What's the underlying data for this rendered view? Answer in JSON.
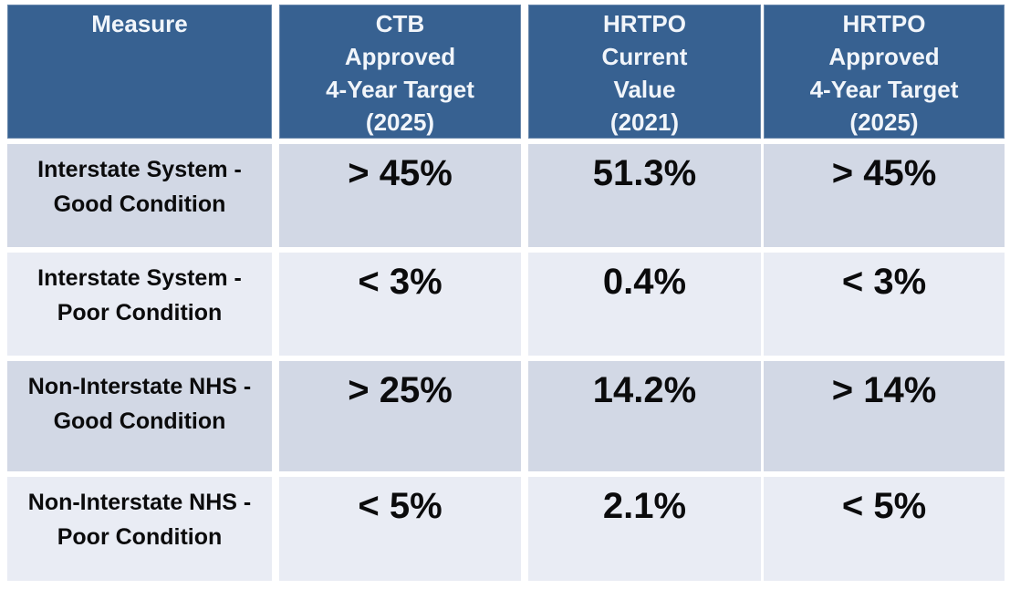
{
  "colors": {
    "header_bg": "#376191",
    "header_text": "#F1F5FA",
    "row_dark_bg": "#D2D8E5",
    "row_light_bg": "#E9ECF4",
    "value_text": "#0B0B0C",
    "gap": "#FFFFFF"
  },
  "table": {
    "header": {
      "measure": "Measure",
      "ctb_approved_target": "CTB\nApproved\n4-Year Target\n(2025)",
      "hrtpo_current_value": "HRTPO\nCurrent\nValue\n(2021)",
      "hrtpo_approved_target": "HRTPO\nApproved\n4-Year Target\n(2025)"
    },
    "rows": [
      {
        "measure": "Interstate System -\nGood Condition",
        "ctb_approved_target": "> 45%",
        "hrtpo_current_value": "51.3%",
        "hrtpo_approved_target": "> 45%"
      },
      {
        "measure": "Interstate System -\nPoor Condition",
        "ctb_approved_target": "< 3%",
        "hrtpo_current_value": "0.4%",
        "hrtpo_approved_target": "< 3%"
      },
      {
        "measure": "Non-Interstate NHS -\nGood Condition",
        "ctb_approved_target": "> 25%",
        "hrtpo_current_value": "14.2%",
        "hrtpo_approved_target": "> 14%"
      },
      {
        "measure": "Non-Interstate NHS -\nPoor Condition",
        "ctb_approved_target": "< 5%",
        "hrtpo_current_value": "2.1%",
        "hrtpo_approved_target": "< 5%"
      }
    ]
  }
}
